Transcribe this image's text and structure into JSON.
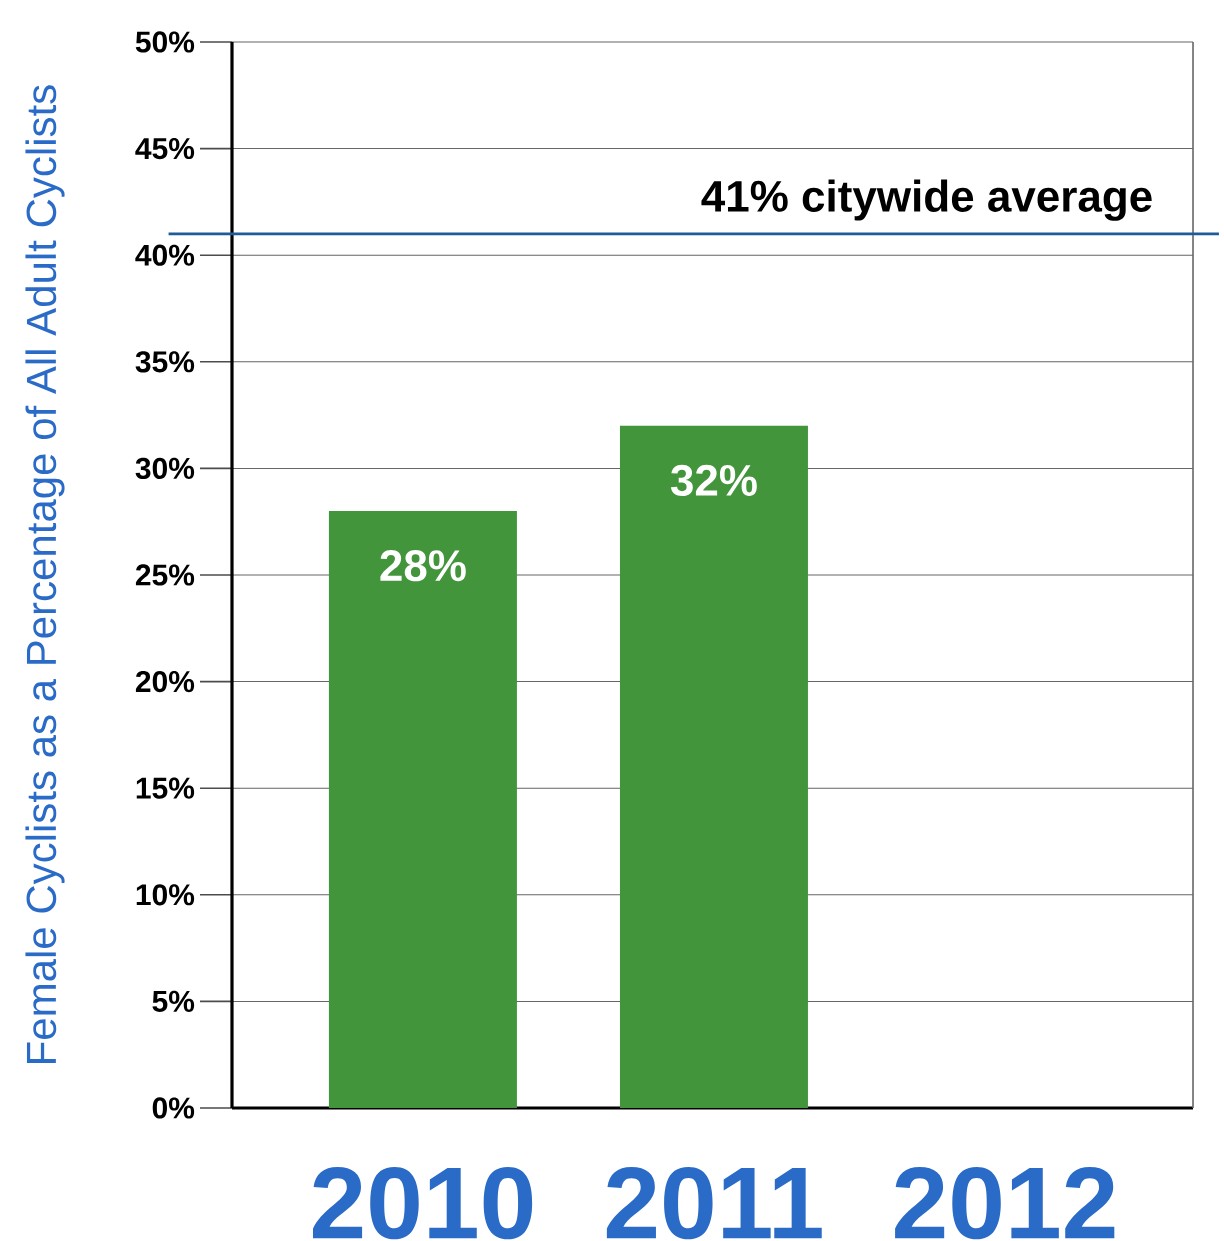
{
  "chart_data": {
    "type": "bar",
    "ylabel": "Female Cyclists as a Percentage of All Adult Cyclists",
    "categories": [
      "2010",
      "2011",
      "2012"
    ],
    "values": [
      28,
      32,
      null
    ],
    "color": "#43953b",
    "value_labels": [
      "28%",
      "32%",
      null
    ],
    "ylim": [
      0,
      50
    ],
    "yticks": [
      {
        "value": 0,
        "label": "0%"
      },
      {
        "value": 5,
        "label": "5%"
      },
      {
        "value": 10,
        "label": "10%"
      },
      {
        "value": 15,
        "label": "15%"
      },
      {
        "value": 20,
        "label": "20%"
      },
      {
        "value": 25,
        "label": "25%"
      },
      {
        "value": 30,
        "label": "30%"
      },
      {
        "value": 35,
        "label": "35%"
      },
      {
        "value": 40,
        "label": "40%"
      },
      {
        "value": 45,
        "label": "45%"
      },
      {
        "value": 50,
        "label": "50%"
      }
    ],
    "grid": "y",
    "ref_lines": [
      {
        "axis": "y",
        "value": 41,
        "label": "41% citywide average",
        "color": "#1f5a99"
      }
    ]
  }
}
